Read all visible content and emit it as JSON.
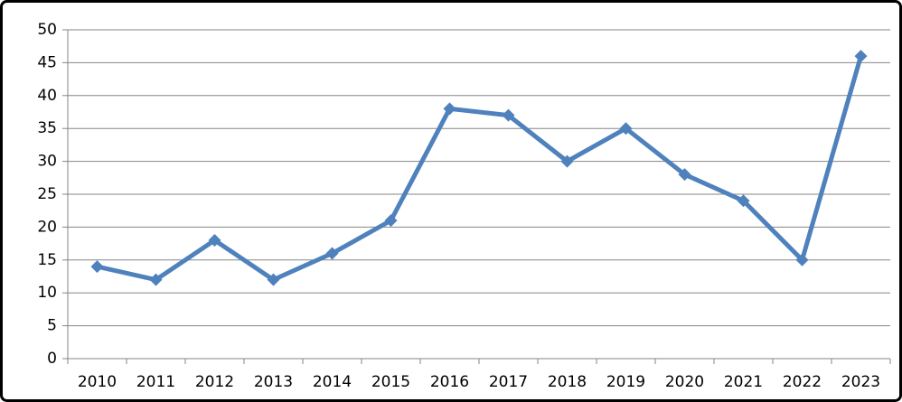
{
  "chart_data": {
    "type": "line",
    "categories": [
      "2010",
      "2011",
      "2012",
      "2013",
      "2014",
      "2015",
      "2016",
      "2017",
      "2018",
      "2019",
      "2020",
      "2021",
      "2022",
      "2023"
    ],
    "values": [
      14,
      12,
      18,
      12,
      16,
      21,
      38,
      37,
      30,
      35,
      28,
      24,
      15,
      46
    ],
    "color": "#4f81bd",
    "ylim": [
      0,
      50
    ],
    "yticks": [
      0,
      5,
      10,
      15,
      20,
      25,
      30,
      35,
      40,
      45,
      50
    ],
    "grid": true
  }
}
